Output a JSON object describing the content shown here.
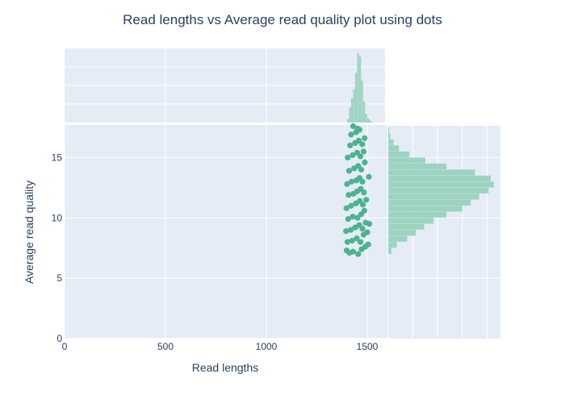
{
  "chart_data": {
    "type": "scatter",
    "title": "Read lengths vs Average read quality plot using dots",
    "xlabel": "Read lengths",
    "ylabel": "Average read quality",
    "xlim": [
      0,
      1600
    ],
    "ylim": [
      0,
      17.7
    ],
    "x_ticks": [
      0,
      500,
      1000,
      1500
    ],
    "y_ticks": [
      0,
      5,
      10,
      15
    ],
    "point_color": "#4cb391",
    "histogram_color": "#9dd3c1",
    "grid": true,
    "marginal_histograms": [
      "top",
      "right"
    ],
    "x_distribution": {
      "bins": [
        1400,
        1410,
        1420,
        1430,
        1440,
        1450,
        1460,
        1470,
        1480,
        1490,
        1500,
        1510,
        1520
      ],
      "counts": [
        0.05,
        0.22,
        0.35,
        0.48,
        0.72,
        1.0,
        0.95,
        0.6,
        0.3,
        0.12,
        0.06,
        0.03,
        0.01
      ]
    },
    "y_distribution": {
      "bins": [
        7,
        7.5,
        8,
        8.5,
        9,
        9.5,
        10,
        10.5,
        11,
        11.5,
        12,
        12.5,
        13,
        13.5,
        14,
        14.5,
        15,
        15.5,
        16,
        16.5,
        17
      ],
      "counts": [
        0.03,
        0.08,
        0.18,
        0.26,
        0.34,
        0.43,
        0.55,
        0.7,
        0.78,
        0.86,
        0.95,
        1.0,
        0.97,
        0.82,
        0.55,
        0.35,
        0.2,
        0.1,
        0.05,
        0.02,
        0.01
      ]
    },
    "points": [
      [
        1398,
        7.3
      ],
      [
        1412,
        7.1
      ],
      [
        1430,
        7.2
      ],
      [
        1455,
        7.0
      ],
      [
        1472,
        7.4
      ],
      [
        1490,
        7.6
      ],
      [
        1505,
        7.8
      ],
      [
        1402,
        8.0
      ],
      [
        1425,
        8.1
      ],
      [
        1448,
        8.3
      ],
      [
        1466,
        8.0
      ],
      [
        1482,
        8.6
      ],
      [
        1500,
        8.8
      ],
      [
        1395,
        8.9
      ],
      [
        1418,
        9.0
      ],
      [
        1440,
        9.2
      ],
      [
        1460,
        9.4
      ],
      [
        1476,
        9.1
      ],
      [
        1492,
        9.6
      ],
      [
        1510,
        9.5
      ],
      [
        1405,
        9.9
      ],
      [
        1428,
        10.1
      ],
      [
        1452,
        10.0
      ],
      [
        1470,
        10.3
      ],
      [
        1486,
        10.6
      ],
      [
        1397,
        10.8
      ],
      [
        1420,
        11.0
      ],
      [
        1444,
        11.2
      ],
      [
        1463,
        11.4
      ],
      [
        1478,
        11.1
      ],
      [
        1495,
        11.5
      ],
      [
        1408,
        11.9
      ],
      [
        1432,
        12.0
      ],
      [
        1450,
        12.2
      ],
      [
        1468,
        12.4
      ],
      [
        1484,
        12.1
      ],
      [
        1400,
        12.8
      ],
      [
        1422,
        13.0
      ],
      [
        1446,
        13.1
      ],
      [
        1462,
        13.3
      ],
      [
        1476,
        13.0
      ],
      [
        1508,
        13.4
      ],
      [
        1410,
        13.9
      ],
      [
        1435,
        14.1
      ],
      [
        1455,
        14.3
      ],
      [
        1470,
        14.0
      ],
      [
        1488,
        14.6
      ],
      [
        1403,
        15.0
      ],
      [
        1428,
        15.2
      ],
      [
        1450,
        15.4
      ],
      [
        1466,
        15.1
      ],
      [
        1482,
        15.5
      ],
      [
        1415,
        16.0
      ],
      [
        1440,
        16.2
      ],
      [
        1458,
        16.4
      ],
      [
        1475,
        16.1
      ],
      [
        1487,
        16.6
      ],
      [
        1420,
        16.9
      ],
      [
        1445,
        17.1
      ],
      [
        1462,
        17.3
      ],
      [
        1430,
        17.6
      ],
      [
        1452,
        17.4
      ]
    ]
  }
}
